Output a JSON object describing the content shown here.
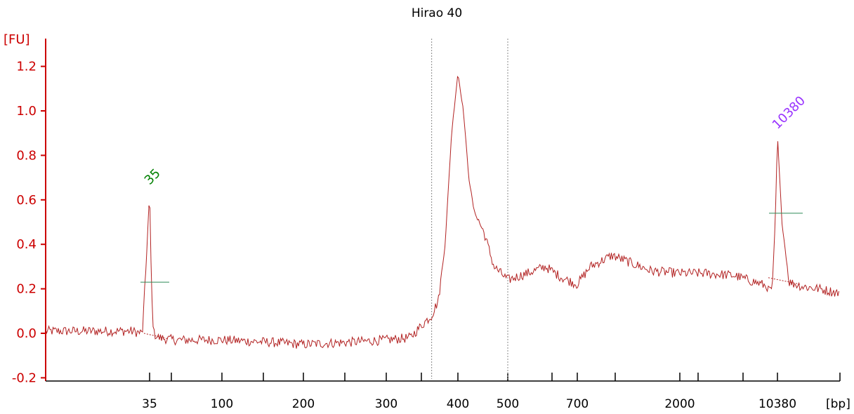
{
  "chart_data": {
    "type": "line",
    "title": "Hirao 40",
    "ylabel": "[FU]",
    "xlabel": "[bp]",
    "ylim": [
      -0.22,
      1.3
    ],
    "y_ticks": [
      "-0.2",
      "0.0",
      "0.2",
      "0.4",
      "0.6",
      "0.8",
      "1.0",
      "1.2"
    ],
    "y_tick_values": [
      -0.2,
      0.0,
      0.2,
      0.4,
      0.6,
      0.8,
      1.0,
      1.2
    ],
    "x_labeled_ticks": [
      "35",
      "100",
      "200",
      "300",
      "400",
      "500",
      "700",
      "2000",
      "10380"
    ],
    "x_axis_mode": "non-linear (bp ladder)",
    "x_range_bp": [
      15,
      18000
    ],
    "peak_labels": [
      {
        "text": "35",
        "color": "#008000",
        "bp": 35,
        "fu": 0.64
      },
      {
        "text": "10380",
        "color": "#9933ff",
        "bp": 10380,
        "fu": 0.89
      }
    ],
    "region_bounds_bp": [
      360,
      500
    ],
    "series": [
      {
        "color": "#b22222",
        "x": [
          15,
          25,
          30,
          33,
          34,
          35,
          36,
          37,
          40,
          50,
          75,
          100,
          150,
          200,
          250,
          300,
          330,
          350,
          360,
          370,
          380,
          390,
          400,
          410,
          420,
          430,
          440,
          450,
          470,
          500,
          550,
          600,
          650,
          700,
          800,
          1000,
          1500,
          2000,
          3000,
          5000,
          8000,
          9500,
          10000,
          10380,
          10800,
          11500,
          13000,
          15000,
          18000
        ],
        "values": [
          0.01,
          0.01,
          0.01,
          0.0,
          0.3,
          0.64,
          0.2,
          0.0,
          -0.02,
          -0.03,
          -0.03,
          -0.03,
          -0.04,
          -0.05,
          -0.04,
          -0.03,
          -0.02,
          0.05,
          0.08,
          0.15,
          0.4,
          0.9,
          1.17,
          1.0,
          0.7,
          0.55,
          0.5,
          0.45,
          0.3,
          0.24,
          0.27,
          0.3,
          0.25,
          0.22,
          0.3,
          0.35,
          0.28,
          0.27,
          0.27,
          0.26,
          0.22,
          0.2,
          0.5,
          0.89,
          0.5,
          0.23,
          0.21,
          0.2,
          0.18
        ]
      }
    ],
    "colors": {
      "axis": "#cc0000",
      "trace": "#b22222",
      "baseline_marker": "#2e8b57"
    }
  }
}
